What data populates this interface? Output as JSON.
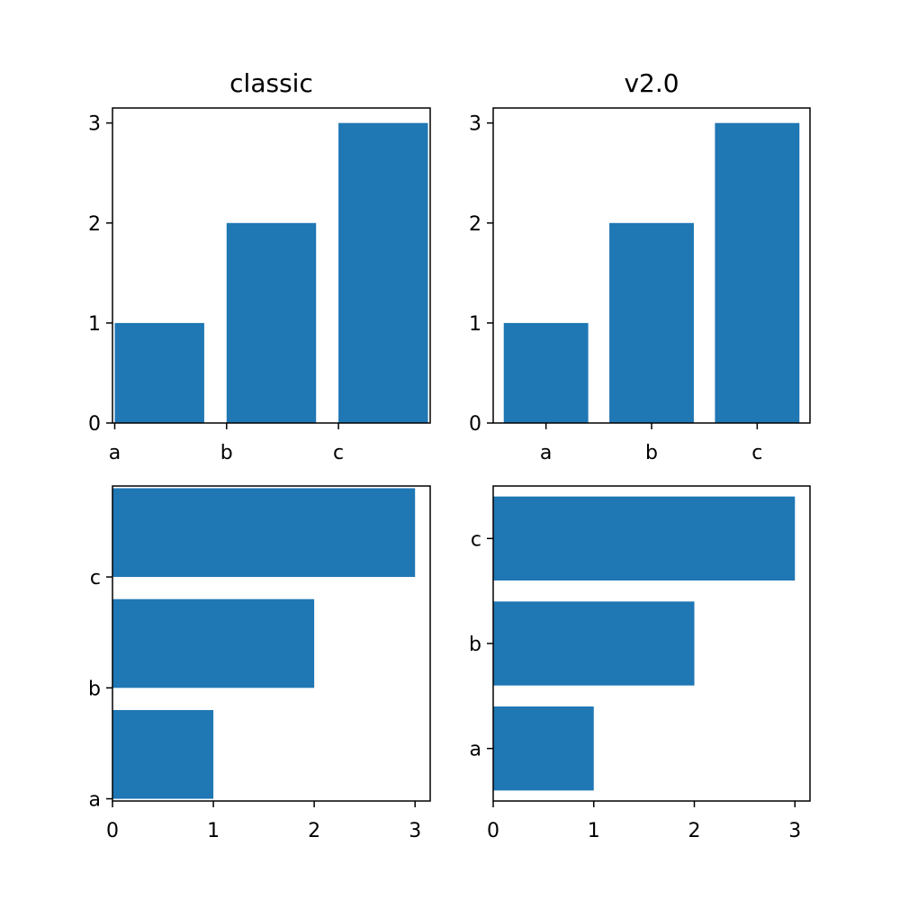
{
  "colors": {
    "bar": "#1f77b4",
    "axis": "#000000",
    "background": "#ffffff"
  },
  "chart_data": [
    {
      "type": "bar",
      "orientation": "vertical",
      "title": "classic",
      "categories": [
        "a",
        "b",
        "c"
      ],
      "values": [
        1,
        2,
        3
      ],
      "tick_alignment": "edge",
      "ylim": [
        0,
        3.15
      ],
      "yticks": [
        0,
        1,
        2,
        3
      ],
      "xlabel": "",
      "ylabel": "",
      "grid": false
    },
    {
      "type": "bar",
      "orientation": "vertical",
      "title": "v2.0",
      "categories": [
        "a",
        "b",
        "c"
      ],
      "values": [
        1,
        2,
        3
      ],
      "tick_alignment": "center",
      "ylim": [
        0,
        3.15
      ],
      "yticks": [
        0,
        1,
        2,
        3
      ],
      "xlabel": "",
      "ylabel": "",
      "grid": false
    },
    {
      "type": "bar",
      "orientation": "horizontal",
      "title": "",
      "categories": [
        "a",
        "b",
        "c"
      ],
      "values": [
        1,
        2,
        3
      ],
      "tick_alignment": "edge",
      "xlim": [
        0,
        3.15
      ],
      "xticks": [
        0,
        1,
        2,
        3
      ],
      "xlabel": "",
      "ylabel": "",
      "grid": false
    },
    {
      "type": "bar",
      "orientation": "horizontal",
      "title": "",
      "categories": [
        "a",
        "b",
        "c"
      ],
      "values": [
        1,
        2,
        3
      ],
      "tick_alignment": "center",
      "xlim": [
        0,
        3.15
      ],
      "xticks": [
        0,
        1,
        2,
        3
      ],
      "xlabel": "",
      "ylabel": "",
      "grid": false
    }
  ]
}
